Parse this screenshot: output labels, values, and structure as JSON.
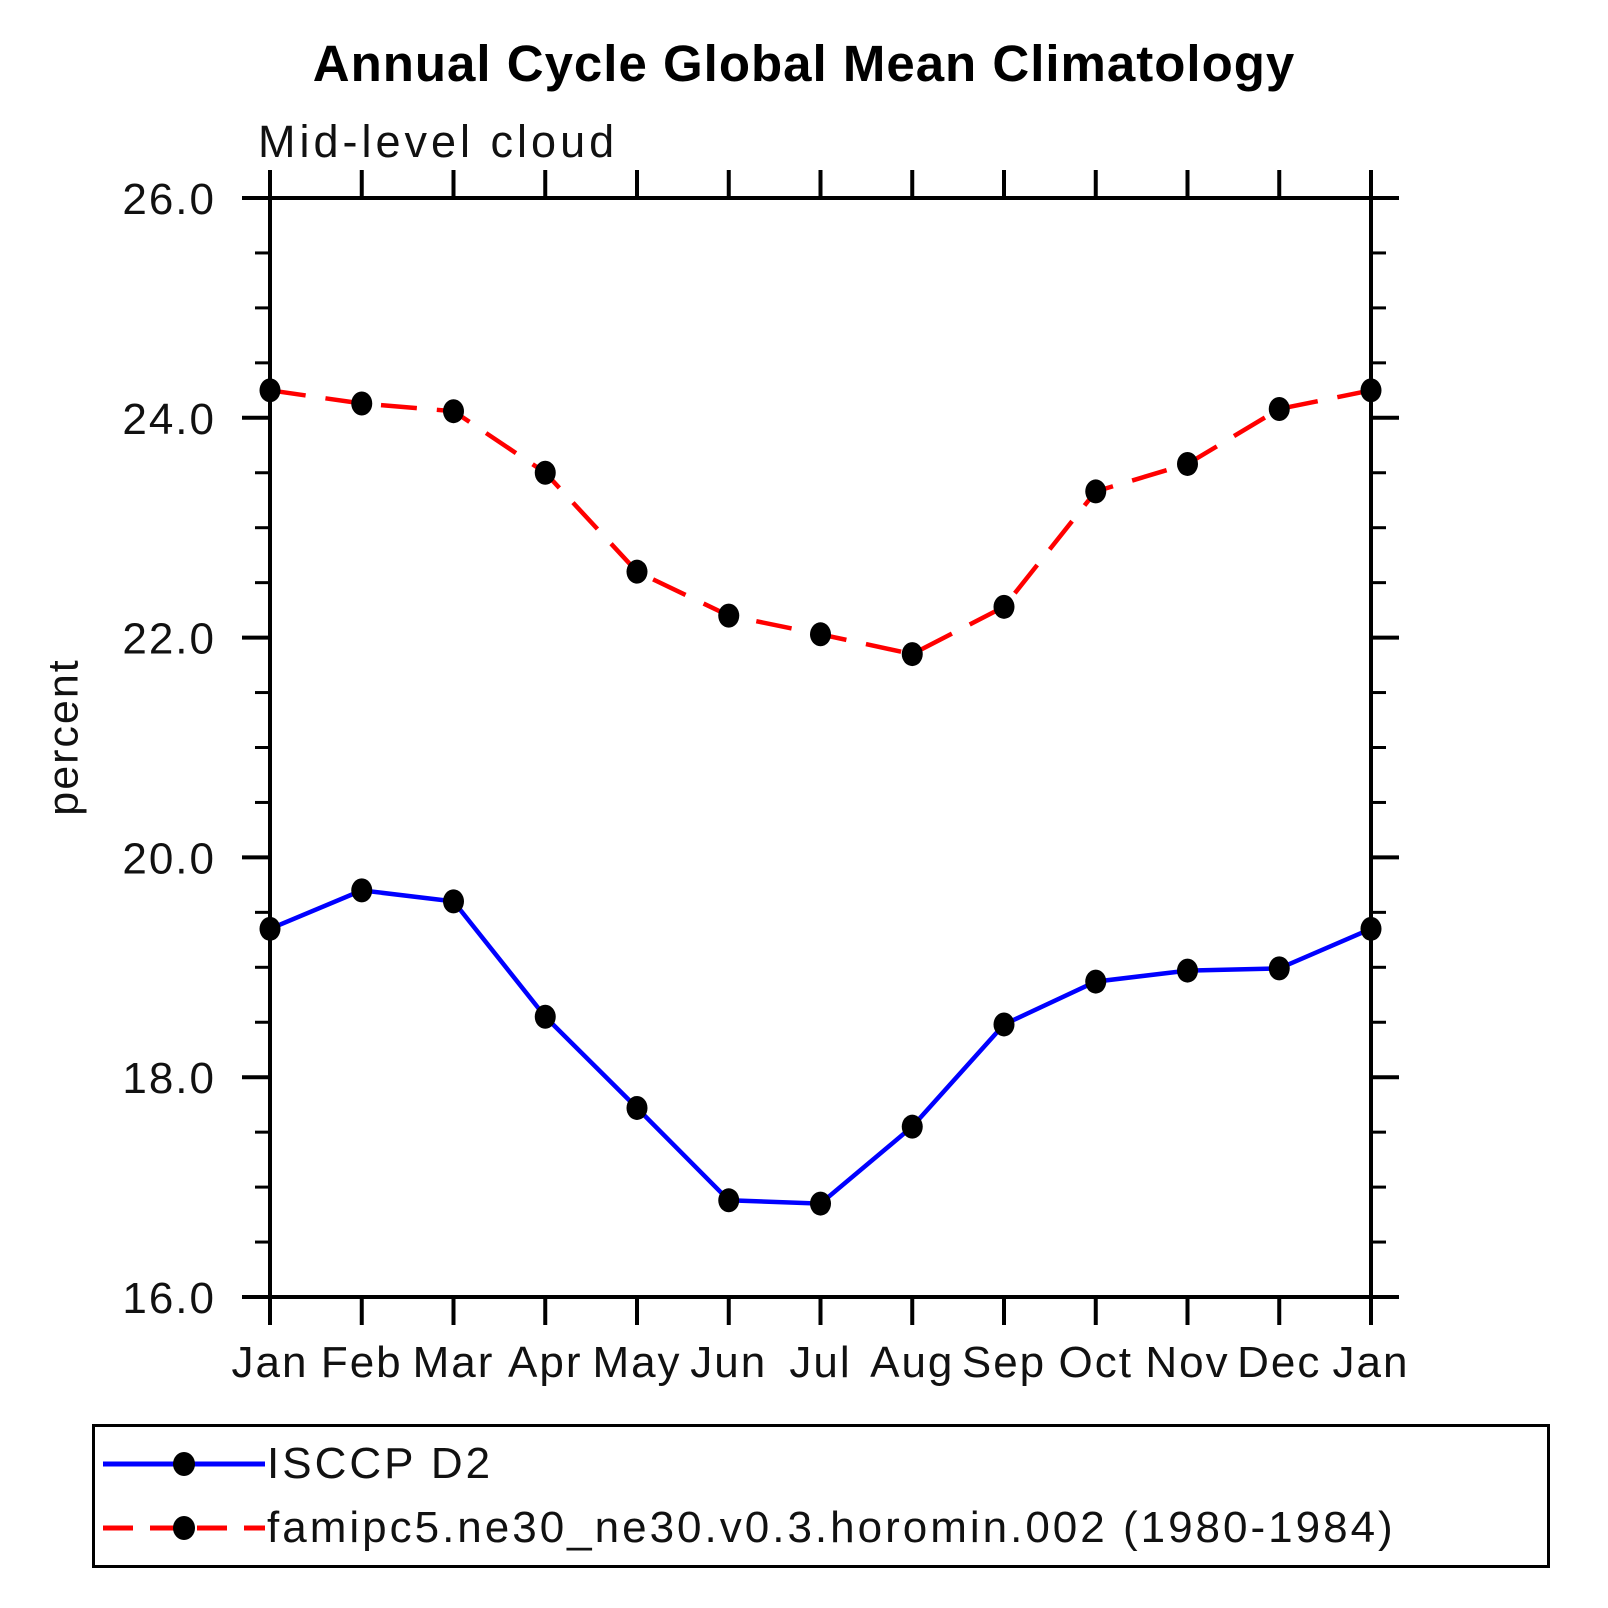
{
  "page": {
    "background": "#ffffff",
    "text_color": "#000000"
  },
  "chart_data": {
    "type": "line",
    "title": "Annual Cycle Global Mean Climatology",
    "subtitle": "Mid-level cloud",
    "xlabel": "",
    "ylabel": "percent",
    "x_categories": [
      "Jan",
      "Feb",
      "Mar",
      "Apr",
      "May",
      "Jun",
      "Jul",
      "Aug",
      "Sep",
      "Oct",
      "Nov",
      "Dec",
      "Jan"
    ],
    "ylim": [
      16.0,
      26.0
    ],
    "ytick_major": [
      16.0,
      18.0,
      20.0,
      22.0,
      24.0,
      26.0
    ],
    "ytick_major_labels": [
      "16.0",
      "18.0",
      "20.0",
      "22.0",
      "24.0",
      "26.0"
    ],
    "ytick_minor_step": 0.5,
    "grid": false,
    "frame": "box-with-outward-ticks",
    "frame_color": "#000000",
    "legend_position": "bottom-left-box",
    "series": [
      {
        "name": "ISCCP D2",
        "color": "#0000ff",
        "line_style": "solid",
        "marker": "filled-circle",
        "marker_color": "#000000",
        "values": [
          19.35,
          19.7,
          19.6,
          18.55,
          17.72,
          16.88,
          16.85,
          17.55,
          18.48,
          18.87,
          18.97,
          18.99,
          19.35
        ]
      },
      {
        "name": "famipc5.ne30_ne30.v0.3.horomin.002 (1980-1984)",
        "color": "#ff0000",
        "line_style": "dashed",
        "marker": "filled-circle",
        "marker_color": "#000000",
        "values": [
          24.25,
          24.13,
          24.06,
          23.5,
          22.6,
          22.2,
          22.03,
          21.85,
          22.28,
          23.33,
          23.58,
          24.08,
          24.25
        ]
      }
    ]
  }
}
